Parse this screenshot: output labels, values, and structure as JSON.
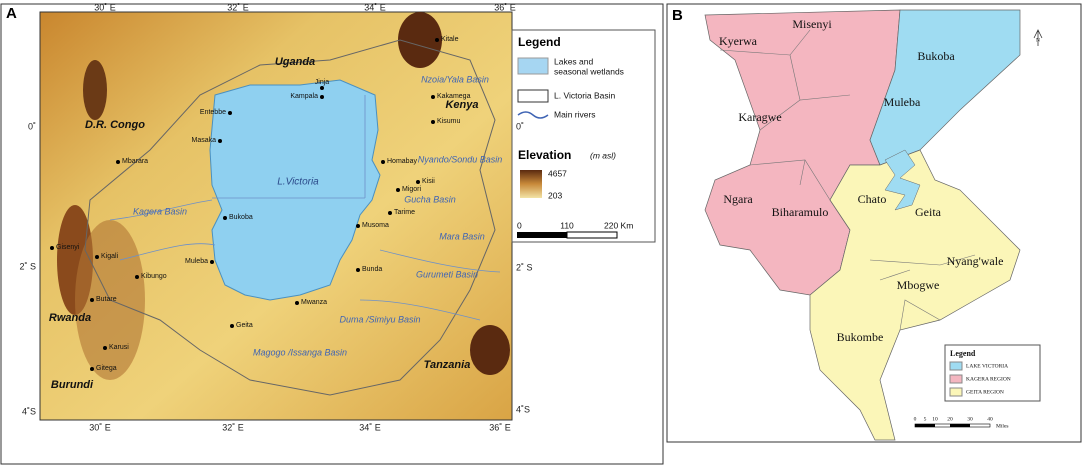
{
  "panel_a": {
    "label": "A",
    "top_lon_labels": [
      "30˚ E",
      "32˚ E",
      "34˚ E",
      "36˚ E"
    ],
    "bottom_lon_labels": [
      "30˚ E",
      "32˚ E",
      "34˚ E",
      "36˚ E"
    ],
    "left_lat_labels": [
      "0˚",
      "2˚ S",
      "4˚S"
    ],
    "right_lat_labels": [
      "0˚",
      "2˚ S",
      "4˚S"
    ],
    "countries": [
      "Uganda",
      "D.R. Congo",
      "Kenya",
      "Rwanda",
      "Burundi",
      "Tanzania"
    ],
    "lake": "L.Victoria",
    "basins": [
      "Nzoia/Yala Basin",
      "Nyando/Sondu Basin",
      "Kagera Basin",
      "Gucha Basin",
      "Mara Basin",
      "Gurumeti Basin",
      "Duma /Simiyu Basin",
      "Magogo /Issanga Basin"
    ],
    "towns": [
      "Kitale",
      "Jinja",
      "Kampala",
      "Kakamega",
      "Entebbe",
      "Kisumu",
      "Masaka",
      "Homabay",
      "Mbarara",
      "Kisii",
      "Migori",
      "Tarime",
      "Bukoba",
      "Musoma",
      "Gisenyi",
      "Kigali",
      "Muleba",
      "Kibungo",
      "Bunda",
      "Butare",
      "Mwanza",
      "Geita",
      "Karusi",
      "Gitega"
    ],
    "legend": {
      "title": "Legend",
      "items": [
        "Lakes and",
        "seasonal wetlands",
        "L. Victoria Basin",
        "Main rivers"
      ],
      "elevation_title": "Elevation",
      "elevation_unit": "(m asl)",
      "elevation_max": 4657,
      "elevation_min": 203,
      "scale_labels": [
        "0",
        "110",
        "220 Km"
      ]
    }
  },
  "panel_b": {
    "label": "B",
    "districts": [
      "Kyerwa",
      "Misenyi",
      "Bukoba",
      "Karagwe",
      "Muleba",
      "Ngara",
      "Biharamulo",
      "Chato",
      "Geita",
      "Nyang'wale",
      "Mbogwe",
      "Bukombe"
    ],
    "north": "N",
    "legend": {
      "title": "Legend",
      "items": [
        "LAKE VICTORIA",
        "KAGERA REGION",
        "GEITA REGION"
      ]
    },
    "scale_labels": [
      "0",
      "5",
      "10",
      "20",
      "30",
      "40",
      "Miles"
    ]
  }
}
